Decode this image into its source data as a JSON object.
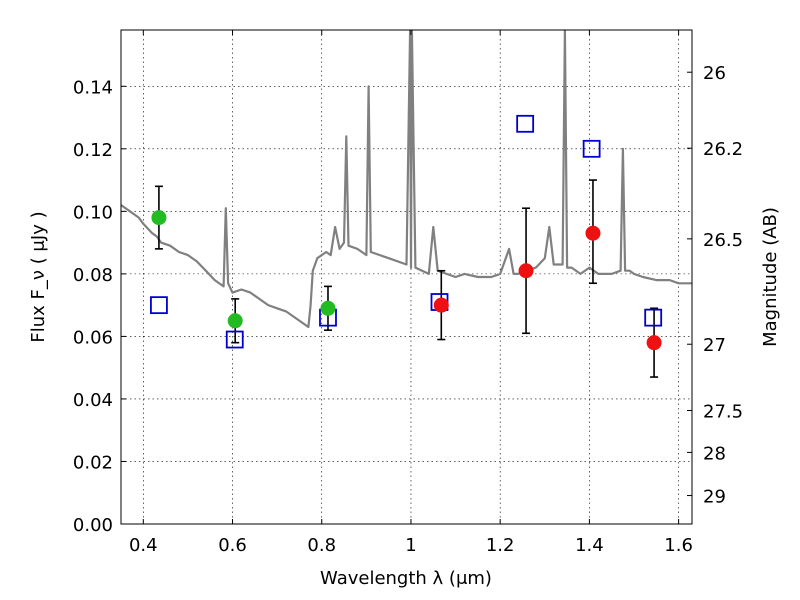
{
  "chart_data": {
    "type": "scatter",
    "title": "",
    "xlabel": "Wavelength  λ (μm)",
    "ylabel": "Flux  F_ν  ( μJy )",
    "y2label": "Magnitude (AB)",
    "xlim": [
      0.35,
      1.63
    ],
    "ylim": [
      0.0,
      0.158
    ],
    "grid": true,
    "x_ticks": [
      {
        "v": 0.4,
        "label": "0.4"
      },
      {
        "v": 0.6,
        "label": "0.6"
      },
      {
        "v": 0.8,
        "label": "0.8"
      },
      {
        "v": 1.0,
        "label": "1"
      },
      {
        "v": 1.2,
        "label": "1.2"
      },
      {
        "v": 1.4,
        "label": "1.4"
      },
      {
        "v": 1.6,
        "label": "1.6"
      }
    ],
    "y_ticks": [
      {
        "v": 0.0,
        "label": "0.00"
      },
      {
        "v": 0.02,
        "label": "0.02"
      },
      {
        "v": 0.04,
        "label": "0.04"
      },
      {
        "v": 0.06,
        "label": "0.06"
      },
      {
        "v": 0.08,
        "label": "0.08"
      },
      {
        "v": 0.1,
        "label": "0.10"
      },
      {
        "v": 0.12,
        "label": "0.12"
      },
      {
        "v": 0.14,
        "label": "0.14"
      }
    ],
    "y2_ticks": [
      {
        "flux": 0.1445,
        "label": "26"
      },
      {
        "flux": 0.1202,
        "label": "26.2"
      },
      {
        "flux": 0.0912,
        "label": "26.5"
      },
      {
        "flux": 0.0575,
        "label": "27"
      },
      {
        "flux": 0.0363,
        "label": "27.5"
      },
      {
        "flux": 0.0229,
        "label": "28"
      },
      {
        "flux": 0.0091,
        "label": "29"
      }
    ],
    "colors": {
      "spectrum": "#808080",
      "model_squares": "#0000cc",
      "green_points": "#22bb22",
      "red_points": "#ee1111",
      "errorbars": "#000000"
    },
    "series": [
      {
        "marker": "square",
        "x": [
          0.435,
          0.605,
          0.814,
          1.064,
          1.256,
          1.405,
          1.543
        ],
        "y": [
          0.07,
          0.059,
          0.066,
          0.071,
          0.128,
          0.12,
          0.066
        ]
      },
      {
        "marker": "circle",
        "x": [
          0.435,
          0.606,
          0.814
        ],
        "y": [
          0.098,
          0.065,
          0.069
        ],
        "err_low": [
          0.088,
          0.058,
          0.062
        ],
        "err_high": [
          0.108,
          0.072,
          0.076
        ]
      },
      {
        "marker": "circle",
        "x": [
          1.068,
          1.258,
          1.408,
          1.545
        ],
        "y": [
          0.07,
          0.081,
          0.093,
          0.058
        ],
        "err_low": [
          0.059,
          0.061,
          0.077,
          0.047
        ],
        "err_high": [
          0.081,
          0.101,
          0.11,
          0.069
        ]
      },
      {
        "line": true,
        "x": [
          0.35,
          0.36,
          0.37,
          0.38,
          0.39,
          0.4,
          0.42,
          0.43,
          0.44,
          0.46,
          0.48,
          0.5,
          0.52,
          0.54,
          0.56,
          0.58,
          0.585,
          0.59,
          0.6,
          0.62,
          0.64,
          0.66,
          0.68,
          0.7,
          0.72,
          0.74,
          0.76,
          0.77,
          0.775,
          0.78,
          0.79,
          0.8,
          0.81,
          0.82,
          0.83,
          0.84,
          0.85,
          0.855,
          0.86,
          0.88,
          0.9,
          0.905,
          0.91,
          0.95,
          0.99,
          0.998,
          1.0,
          1.002,
          1.01,
          1.04,
          1.05,
          1.06,
          1.08,
          1.1,
          1.12,
          1.15,
          1.18,
          1.2,
          1.22,
          1.23,
          1.24,
          1.26,
          1.28,
          1.3,
          1.31,
          1.32,
          1.34,
          1.345,
          1.35,
          1.36,
          1.38,
          1.4,
          1.42,
          1.45,
          1.47,
          1.475,
          1.48,
          1.49,
          1.5,
          1.52,
          1.55,
          1.58,
          1.6,
          1.63
        ],
        "y": [
          0.102,
          0.101,
          0.1,
          0.099,
          0.098,
          0.096,
          0.093,
          0.092,
          0.09,
          0.089,
          0.087,
          0.086,
          0.084,
          0.081,
          0.078,
          0.076,
          0.101,
          0.077,
          0.074,
          0.075,
          0.074,
          0.072,
          0.07,
          0.069,
          0.068,
          0.066,
          0.064,
          0.063,
          0.07,
          0.081,
          0.085,
          0.086,
          0.087,
          0.086,
          0.095,
          0.088,
          0.09,
          0.124,
          0.089,
          0.088,
          0.086,
          0.14,
          0.087,
          0.085,
          0.083,
          0.158,
          0.082,
          0.158,
          0.082,
          0.08,
          0.095,
          0.081,
          0.08,
          0.079,
          0.08,
          0.079,
          0.079,
          0.08,
          0.088,
          0.08,
          0.08,
          0.081,
          0.082,
          0.085,
          0.095,
          0.083,
          0.083,
          0.158,
          0.082,
          0.082,
          0.08,
          0.082,
          0.08,
          0.08,
          0.081,
          0.12,
          0.081,
          0.081,
          0.08,
          0.079,
          0.078,
          0.078,
          0.077,
          0.077
        ]
      }
    ]
  }
}
